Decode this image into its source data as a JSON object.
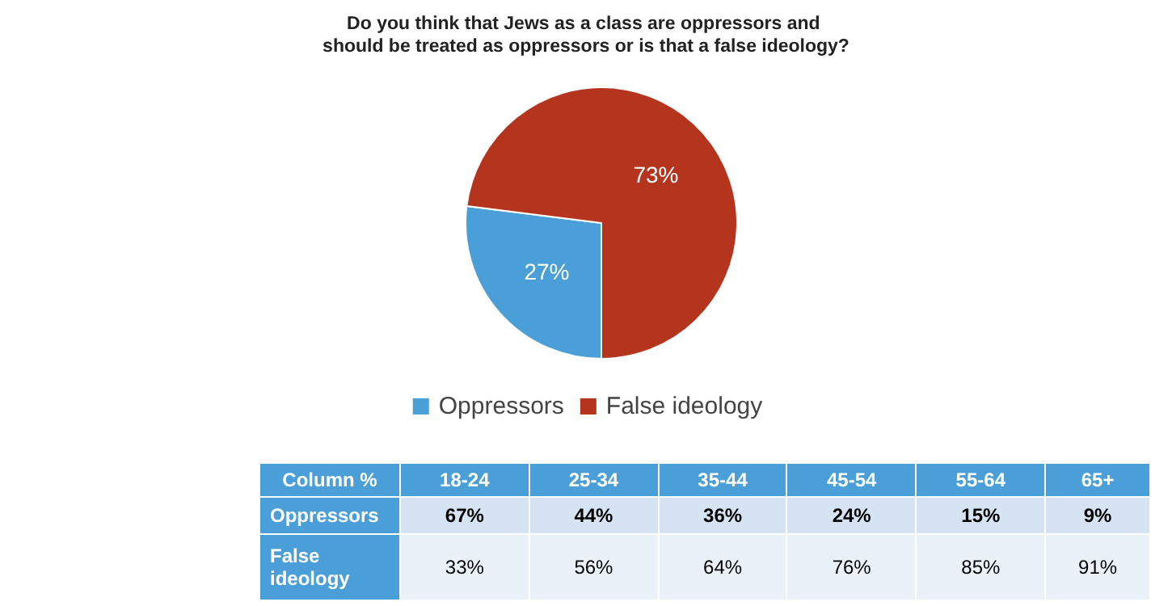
{
  "chart_data": [
    {
      "type": "pie",
      "title": "Do you think that Jews as a class are oppressors and should be treated as oppressors or is that a false ideology?",
      "categories": [
        "Oppressors",
        "False ideology"
      ],
      "values": [
        27,
        73
      ],
      "colors": [
        "#4a9fd8",
        "#b5341d"
      ],
      "value_labels": [
        "27%",
        "73%"
      ],
      "legend": "bottom"
    },
    {
      "type": "heatmap",
      "title": "Column %",
      "categories": [
        "18-24",
        "25-34",
        "35-44",
        "45-54",
        "55-64",
        "65+"
      ],
      "y_categories": [
        "Oppressors",
        "False ideology"
      ],
      "cells": [
        [
          67,
          44,
          36,
          24,
          15,
          9
        ],
        [
          33,
          56,
          64,
          76,
          85,
          91
        ]
      ],
      "cell_labels": [
        [
          "67%",
          "44%",
          "36%",
          "24%",
          "15%",
          "9%"
        ],
        [
          "33%",
          "56%",
          "64%",
          "76%",
          "85%",
          "91%"
        ]
      ]
    }
  ]
}
